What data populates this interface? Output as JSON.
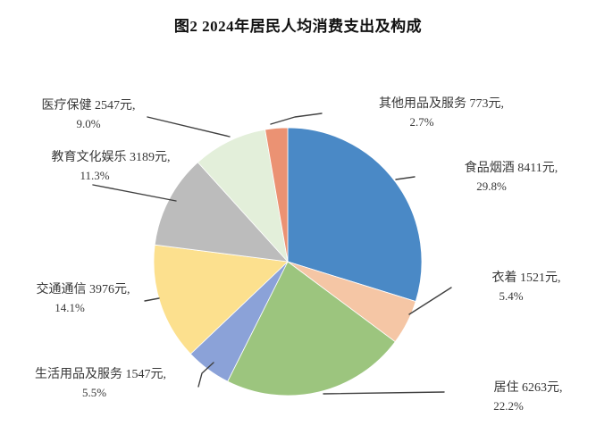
{
  "figure_title": "图2  2024年居民人均消费支出及构成",
  "chart_data": {
    "type": "pie",
    "title": "2024年居民人均消费支出及构成",
    "unit": "元",
    "direction": "clockwise",
    "start_angle": "12-o-clock",
    "legend_position": "none",
    "labels_as_callouts": true,
    "categories": [
      "食品烟酒",
      "衣着",
      "居住",
      "生活用品及服务",
      "交通通信",
      "教育文化娱乐",
      "医疗保健",
      "其他用品及服务"
    ],
    "values_yuan": [
      8411,
      1521,
      6263,
      1547,
      3976,
      3189,
      2547,
      773
    ],
    "percents": [
      29.8,
      5.4,
      22.2,
      5.5,
      14.1,
      11.3,
      9.0,
      2.7
    ],
    "colors": [
      "#4A89C6",
      "#F5C6A5",
      "#9CC57E",
      "#8BA2D8",
      "#FCE08E",
      "#BCBCBC",
      "#E3EFDA",
      "#EB9273"
    ]
  },
  "labels": {
    "food": {
      "line1": "食品烟酒 8411元,",
      "line2": "29.8%"
    },
    "clothing": {
      "line1": "衣着 1521元,",
      "line2": "5.4%"
    },
    "housing": {
      "line1": "居住 6263元,",
      "line2": "22.2%"
    },
    "household": {
      "line1": "生活用品及服务 1547元,",
      "line2": "5.5%"
    },
    "transport": {
      "line1": "交通通信 3976元,",
      "line2": "14.1%"
    },
    "education": {
      "line1": "教育文化娱乐 3189元,",
      "line2": "11.3%"
    },
    "healthcare": {
      "line1": "医疗保健 2547元,",
      "line2": "9.0%"
    },
    "other": {
      "line1": "其他用品及服务 773元,",
      "line2": "2.7%"
    }
  }
}
